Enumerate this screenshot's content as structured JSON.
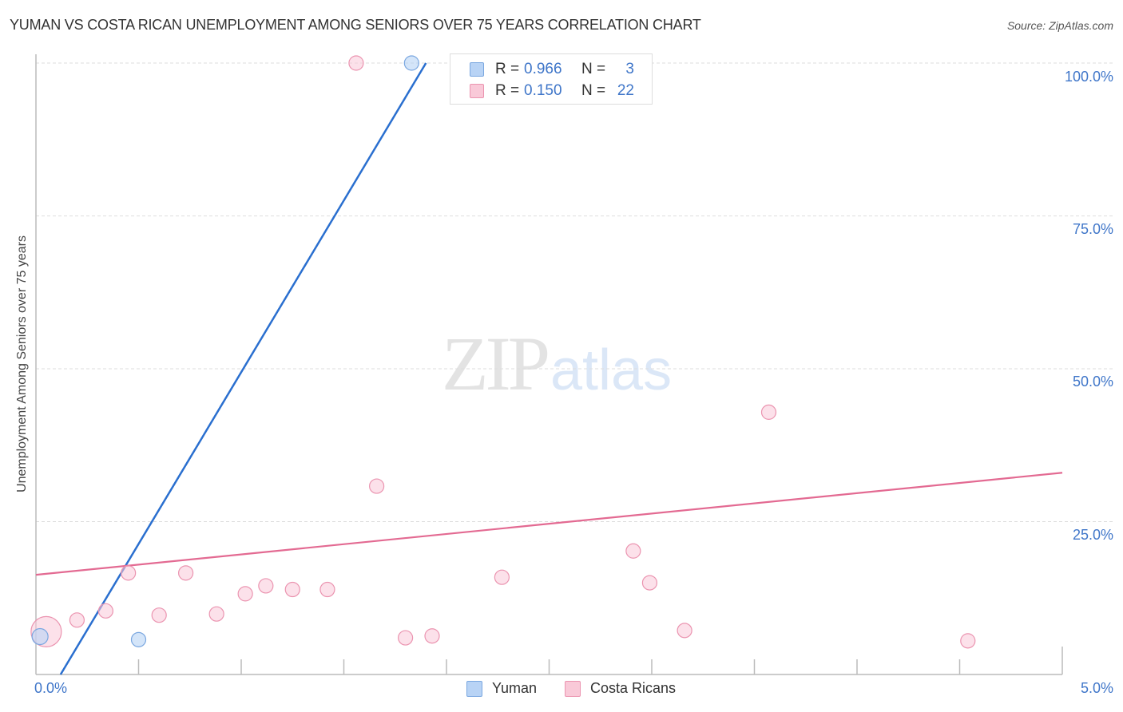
{
  "header": {
    "title": "YUMAN VS COSTA RICAN UNEMPLOYMENT AMONG SENIORS OVER 75 YEARS CORRELATION CHART",
    "source": "Source: ZipAtlas.com"
  },
  "watermark": {
    "zip": "ZIP",
    "atlas": "atlas"
  },
  "colors": {
    "yuman_fill": "#b8d3f5",
    "yuman_stroke": "#7aa7e0",
    "yuman_line": "#2a6fcf",
    "costa_fill": "#f9c9d8",
    "costa_stroke": "#eb94b0",
    "costa_line": "#e36a92",
    "value_text": "#3f76c9"
  },
  "legend": {
    "rows": [
      {
        "series": "Yuman",
        "r_label": "R = ",
        "r_value": "0.966",
        "n_label": "N = ",
        "n_value": "3"
      },
      {
        "series": "Costa Ricans",
        "r_label": "R = ",
        "r_value": "0.150",
        "n_label": "N = ",
        "n_value": "22"
      }
    ]
  },
  "bottom_legend": [
    {
      "label": "Yuman"
    },
    {
      "label": "Costa Ricans"
    }
  ],
  "axes": {
    "y_label": "Unemployment Among Seniors over 75 years",
    "y_ticks": [
      "100.0%",
      "75.0%",
      "50.0%",
      "25.0%"
    ],
    "x_ticks": [
      "0.0%",
      "5.0%"
    ]
  },
  "chart_data": {
    "type": "scatter",
    "title": "YUMAN VS COSTA RICAN UNEMPLOYMENT AMONG SENIORS OVER 75 YEARS CORRELATION CHART",
    "xlabel": "",
    "ylabel": "Unemployment Among Seniors over 75 years",
    "xlim": [
      0,
      5.0
    ],
    "ylim": [
      0,
      100
    ],
    "x_unit": "%",
    "y_unit": "%",
    "grid": "horizontal dashed at 25/50/75/100",
    "legend_position": "top-center (stats) and bottom-center (series)",
    "series": [
      {
        "name": "Yuman",
        "R": 0.966,
        "N": 3,
        "points": [
          {
            "x": 0.02,
            "y": 6.2,
            "size": "medium"
          },
          {
            "x": 0.5,
            "y": 5.7,
            "size": "small"
          },
          {
            "x": 1.83,
            "y": 100.0,
            "size": "small"
          }
        ],
        "trendline": {
          "x0": 0.12,
          "y0": 0.0,
          "x1": 1.9,
          "y1": 100.0
        }
      },
      {
        "name": "Costa Ricans",
        "R": 0.15,
        "N": 22,
        "points": [
          {
            "x": 0.05,
            "y": 7.0,
            "size": "large"
          },
          {
            "x": 0.2,
            "y": 8.9,
            "size": "small"
          },
          {
            "x": 0.34,
            "y": 10.4,
            "size": "small"
          },
          {
            "x": 0.45,
            "y": 16.6,
            "size": "small"
          },
          {
            "x": 0.6,
            "y": 9.7,
            "size": "small"
          },
          {
            "x": 0.73,
            "y": 16.6,
            "size": "small"
          },
          {
            "x": 0.88,
            "y": 9.9,
            "size": "small"
          },
          {
            "x": 1.02,
            "y": 13.2,
            "size": "small"
          },
          {
            "x": 1.12,
            "y": 14.5,
            "size": "small"
          },
          {
            "x": 1.25,
            "y": 13.9,
            "size": "small"
          },
          {
            "x": 1.42,
            "y": 13.9,
            "size": "small"
          },
          {
            "x": 1.56,
            "y": 100.0,
            "size": "small"
          },
          {
            "x": 1.66,
            "y": 30.8,
            "size": "small"
          },
          {
            "x": 1.8,
            "y": 6.0,
            "size": "small"
          },
          {
            "x": 1.93,
            "y": 6.3,
            "size": "small"
          },
          {
            "x": 2.27,
            "y": 15.9,
            "size": "small"
          },
          {
            "x": 2.33,
            "y": 100.0,
            "size": "small"
          },
          {
            "x": 2.91,
            "y": 20.2,
            "size": "small"
          },
          {
            "x": 2.99,
            "y": 15.0,
            "size": "small"
          },
          {
            "x": 3.16,
            "y": 7.2,
            "size": "small"
          },
          {
            "x": 3.57,
            "y": 42.9,
            "size": "small"
          },
          {
            "x": 4.54,
            "y": 5.5,
            "size": "small"
          }
        ],
        "trendline": {
          "x0": 0.0,
          "y0": 16.3,
          "x1": 5.0,
          "y1": 33.0
        }
      }
    ]
  }
}
